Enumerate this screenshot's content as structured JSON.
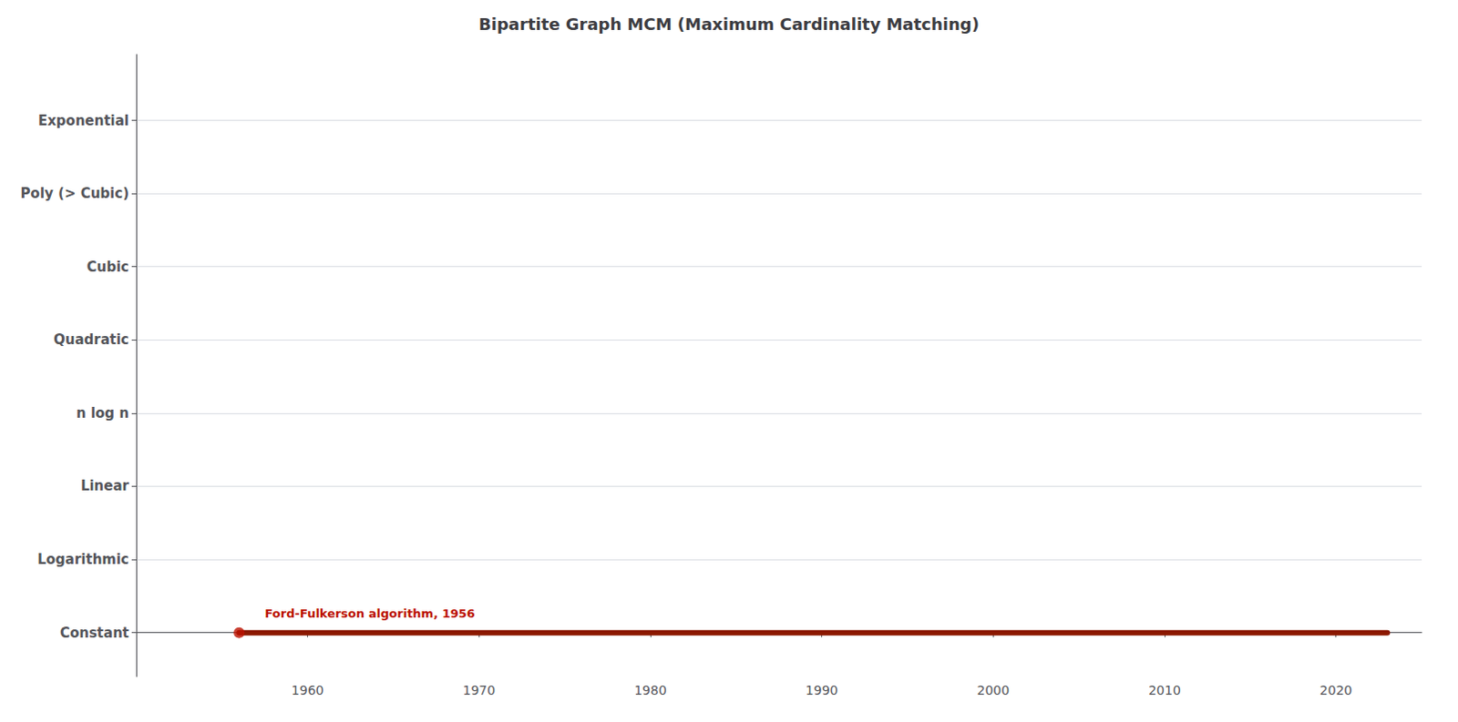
{
  "chart_data": {
    "type": "line",
    "title": "Bipartite Graph MCM (Maximum Cardinality Matching)",
    "series": [
      {
        "type": "line",
        "color": "#8B1800",
        "x": [
          1956,
          2023
        ],
        "values": [
          0,
          0
        ]
      },
      {
        "type": "scatter",
        "color": "#BB1100",
        "x": [
          1956
        ],
        "values": [
          0
        ]
      }
    ],
    "annotations": [
      {
        "text": "Ford-Fulkerson algorithm, 1956",
        "x": 1957.5,
        "y": 0.18,
        "color": "#BB1100"
      }
    ],
    "xlim": [
      1950,
      2025
    ],
    "ylim": [
      -0.6,
      7.9
    ],
    "xticks": [
      1960,
      1970,
      1980,
      1990,
      2000,
      2010,
      2020
    ],
    "yticks": [
      {
        "value": 7,
        "label": "Exponential"
      },
      {
        "value": 6,
        "label": "Poly (> Cubic)"
      },
      {
        "value": 5,
        "label": "Cubic"
      },
      {
        "value": 4,
        "label": "Quadratic"
      },
      {
        "value": 3,
        "label": "n log n"
      },
      {
        "value": 2,
        "label": "Linear"
      },
      {
        "value": 1,
        "label": "Logarithmic"
      },
      {
        "value": 0,
        "label": "Constant"
      }
    ],
    "grid": true
  }
}
